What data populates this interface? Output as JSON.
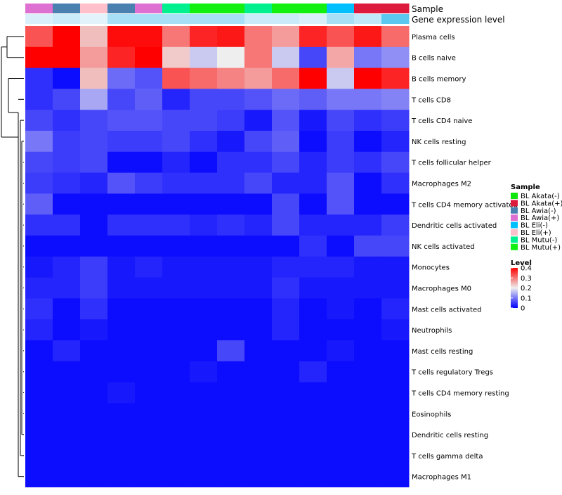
{
  "chart_data": {
    "type": "heatmap",
    "annotation_labels": [
      "Sample",
      "Gene expression level"
    ],
    "columns": [
      {
        "sample": "BL Awia(+)",
        "level": 0.05
      },
      {
        "sample": "BL Awia(-)",
        "level": 0.08
      },
      {
        "sample": "BL Eli(+)",
        "level": 0.03
      },
      {
        "sample": "BL Awia(-)",
        "level": 0.15
      },
      {
        "sample": "BL Awia(+)",
        "level": 0.15
      },
      {
        "sample": "BL Mutu(-)",
        "level": 0.15
      },
      {
        "sample": "BL Mutu(+)",
        "level": 0.15
      },
      {
        "sample": "BL Mutu(+)",
        "level": 0.15
      },
      {
        "sample": "BL Mutu(-)",
        "level": 0.08
      },
      {
        "sample": "BL Mutu(+)",
        "level": 0.08
      },
      {
        "sample": "BL Mutu(+)",
        "level": 0.05
      },
      {
        "sample": "BL Eli(-)",
        "level": 0.15
      },
      {
        "sample": "BL Akata(+)",
        "level": 0.1
      },
      {
        "sample": "BL Akata(+)",
        "level": 0.3
      }
    ],
    "rows": [
      "Plasma cells",
      "B cells naive",
      "B cells memory",
      "T cells CD8",
      "T cells CD4 naive",
      "NK cells resting",
      "T cells follicular helper",
      "Macrophages M2",
      "T cells CD4 memory activated",
      "Dendritic cells activated",
      "NK cells activated",
      "Monocytes",
      "Macrophages M0",
      "Mast cells activated",
      "Neutrophils",
      "Mast cells resting",
      "T cells regulatory  Tregs",
      "T cells CD4 memory resting",
      "Eosinophils",
      "Dendritic cells resting",
      "T cells gamma delta",
      "Macrophages M1"
    ],
    "values": [
      [
        0.33,
        0.4,
        0.24,
        0.39,
        0.39,
        0.3,
        0.37,
        0.38,
        0.3,
        0.27,
        0.37,
        0.33,
        0.38,
        0.31
      ],
      [
        0.4,
        0.4,
        0.27,
        0.37,
        0.41,
        0.23,
        0.17,
        0.2,
        0.3,
        0.17,
        0.06,
        0.26,
        0.1,
        0.12
      ],
      [
        0.04,
        0.01,
        0.24,
        0.09,
        0.07,
        0.33,
        0.31,
        0.29,
        0.27,
        0.31,
        0.41,
        0.17,
        0.4,
        0.37
      ],
      [
        0.04,
        0.06,
        0.14,
        0.06,
        0.08,
        0.03,
        0.06,
        0.06,
        0.07,
        0.09,
        0.08,
        0.1,
        0.1,
        0.11
      ],
      [
        0.06,
        0.04,
        0.06,
        0.07,
        0.07,
        0.06,
        0.06,
        0.05,
        0.02,
        0.07,
        0.02,
        0.06,
        0.04,
        0.05
      ],
      [
        0.1,
        0.05,
        0.06,
        0.05,
        0.05,
        0.06,
        0.04,
        0.02,
        0.06,
        0.08,
        0.01,
        0.05,
        0.01,
        0.03
      ],
      [
        0.06,
        0.05,
        0.06,
        0.01,
        0.01,
        0.03,
        0.01,
        0.04,
        0.04,
        0.06,
        0.03,
        0.05,
        0.04,
        0.06
      ],
      [
        0.05,
        0.04,
        0.03,
        0.07,
        0.05,
        0.04,
        0.04,
        0.04,
        0.06,
        0.03,
        0.03,
        0.07,
        0.01,
        0.04
      ],
      [
        0.08,
        0.01,
        0.01,
        0.01,
        0.01,
        0.01,
        0.01,
        0.01,
        0.01,
        0.06,
        0.01,
        0.07,
        0.01,
        0.01
      ],
      [
        0.04,
        0.04,
        0.01,
        0.04,
        0.04,
        0.04,
        0.03,
        0.04,
        0.03,
        0.06,
        0.03,
        0.03,
        0.03,
        0.05
      ],
      [
        0.01,
        0.01,
        0.01,
        0.01,
        0.01,
        0.01,
        0.01,
        0.01,
        0.01,
        0.01,
        0.04,
        0.01,
        0.06,
        0.06
      ],
      [
        0.02,
        0.03,
        0.05,
        0.02,
        0.03,
        0.02,
        0.02,
        0.02,
        0.02,
        0.03,
        0.03,
        0.03,
        0.02,
        0.02
      ],
      [
        0.03,
        0.03,
        0.05,
        0.02,
        0.02,
        0.02,
        0.02,
        0.02,
        0.02,
        0.04,
        0.02,
        0.02,
        0.02,
        0.02
      ],
      [
        0.04,
        0.01,
        0.04,
        0.01,
        0.01,
        0.01,
        0.01,
        0.01,
        0.01,
        0.03,
        0.01,
        0.02,
        0.01,
        0.03
      ],
      [
        0.03,
        0.01,
        0.02,
        0.01,
        0.01,
        0.01,
        0.01,
        0.01,
        0.01,
        0.03,
        0.01,
        0.01,
        0.01,
        0.02
      ],
      [
        0.01,
        0.03,
        0.01,
        0.01,
        0.01,
        0.01,
        0.01,
        0.06,
        0.01,
        0.01,
        0.01,
        0.02,
        0.01,
        0.01
      ],
      [
        0.01,
        0.01,
        0.01,
        0.01,
        0.01,
        0.01,
        0.02,
        0.01,
        0.01,
        0.01,
        0.03,
        0.01,
        0.01,
        0.01
      ],
      [
        0.01,
        0.01,
        0.01,
        0.02,
        0.01,
        0.01,
        0.01,
        0.01,
        0.01,
        0.01,
        0.01,
        0.01,
        0.01,
        0.01
      ],
      [
        0.01,
        0.01,
        0.01,
        0.01,
        0.01,
        0.01,
        0.01,
        0.01,
        0.01,
        0.01,
        0.01,
        0.01,
        0.01,
        0.01
      ],
      [
        0.01,
        0.01,
        0.01,
        0.01,
        0.01,
        0.01,
        0.01,
        0.01,
        0.01,
        0.01,
        0.01,
        0.01,
        0.01,
        0.01
      ],
      [
        0.01,
        0.01,
        0.01,
        0.01,
        0.01,
        0.01,
        0.01,
        0.01,
        0.01,
        0.01,
        0.01,
        0.01,
        0.01,
        0.01
      ],
      [
        0.01,
        0.01,
        0.01,
        0.01,
        0.01,
        0.01,
        0.01,
        0.01,
        0.01,
        0.01,
        0.01,
        0.01,
        0.01,
        0.01
      ]
    ],
    "color_scale": {
      "min": 0,
      "mid": 0.2,
      "max": 0.4,
      "low_color": "#0000ff",
      "mid_color": "#eeeeee",
      "high_color": "#ff0000"
    },
    "level_bar_colors": {
      "low": "#f2f8fc",
      "high": "#5bc8f0"
    },
    "legend": {
      "sample_title": "Sample",
      "samples": [
        {
          "label": "BL Akata(-)",
          "color": "#0ee60e"
        },
        {
          "label": "BL Akata(+)",
          "color": "#dd1a3c"
        },
        {
          "label": "BL Awia(-)",
          "color": "#4a80b0"
        },
        {
          "label": "BL Awia(+)",
          "color": "#dd70d0"
        },
        {
          "label": "BL Eli(-)",
          "color": "#00bfff"
        },
        {
          "label": "BL Eli(+)",
          "color": "#ffc0cb"
        },
        {
          "label": "BL Mutu(-)",
          "color": "#00f090"
        },
        {
          "label": "BL Mutu(+)",
          "color": "#11f011"
        }
      ],
      "level_title": "Level",
      "level_ticks": [
        {
          "label": "0.4",
          "value": 0.4
        },
        {
          "label": "0.3",
          "value": 0.3
        },
        {
          "label": "0.2",
          "value": 0.2
        },
        {
          "label": "0.1",
          "value": 0.1
        },
        {
          "label": "0",
          "value": 0
        }
      ]
    }
  }
}
